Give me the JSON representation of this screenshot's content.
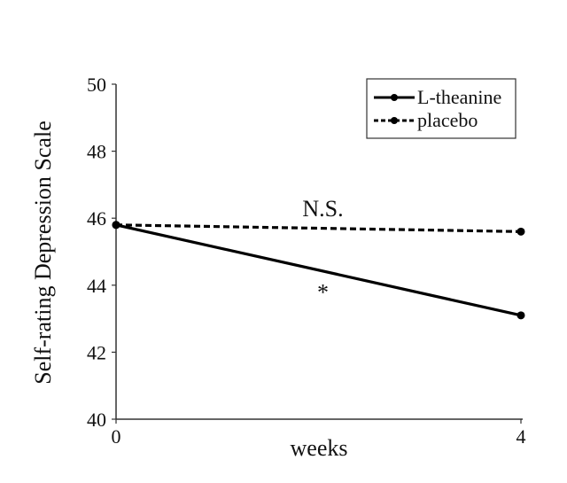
{
  "chart_data": {
    "type": "line",
    "title": "",
    "xlabel": "weeks",
    "ylabel": "Self-rating Depression Scale",
    "x": [
      0,
      4
    ],
    "x_tick_labels": [
      "0",
      "4"
    ],
    "xlim": [
      0,
      4
    ],
    "ylim": [
      40,
      50
    ],
    "y_ticks": [
      40,
      42,
      44,
      46,
      48,
      50
    ],
    "y_tick_labels": [
      "40",
      "42",
      "44",
      "46",
      "48",
      "50"
    ],
    "grid": false,
    "legend_position": "top-right",
    "series": [
      {
        "name": "L-theanine",
        "values": [
          45.8,
          43.1
        ],
        "line_style": "solid",
        "marker": "circle",
        "color": "#000000"
      },
      {
        "name": "placebo",
        "values": [
          45.8,
          45.6
        ],
        "line_style": "dashed",
        "marker": "circle",
        "color": "#000000"
      }
    ],
    "annotations": [
      {
        "text": "N.S.",
        "x": 2,
        "y": 46.3,
        "refers_to": "placebo"
      },
      {
        "text": "*",
        "x": 2,
        "y": 43.8,
        "refers_to": "L-theanine"
      }
    ]
  }
}
